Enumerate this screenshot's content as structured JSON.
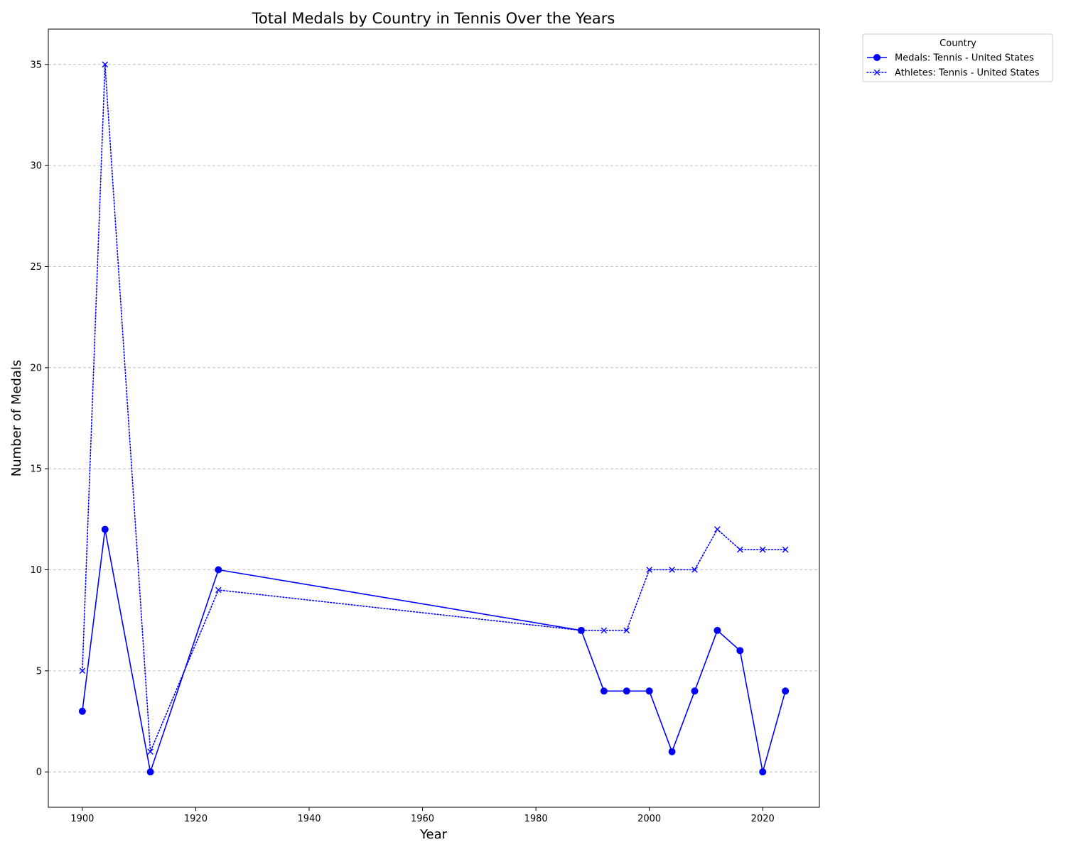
{
  "colors": {
    "series": "#0000ff",
    "grid": "#b0b0b0",
    "axis": "#000000",
    "background": "#ffffff"
  },
  "chart_data": {
    "type": "line",
    "title": "Total Medals by Country in Tennis Over the Years",
    "xlabel": "Year",
    "ylabel": "Number of Medals",
    "xlim": [
      1894,
      2030
    ],
    "ylim": [
      -1.75,
      36.75
    ],
    "xticks": [
      1900,
      1920,
      1940,
      1960,
      1980,
      2000,
      2020
    ],
    "yticks": [
      0,
      5,
      10,
      15,
      20,
      25,
      30,
      35
    ],
    "grid": "horizontal dashed",
    "legend": {
      "title": "Country",
      "placement": "outside top-right"
    },
    "series": [
      {
        "name": "Medals: Tennis - United States",
        "line_style": "solid",
        "marker": "circle",
        "x": [
          1900,
          1904,
          1912,
          1924,
          1988,
          1992,
          1996,
          2000,
          2004,
          2008,
          2012,
          2016,
          2020,
          2024
        ],
        "y": [
          3,
          12,
          0,
          10,
          7,
          4,
          4,
          4,
          1,
          4,
          7,
          6,
          0,
          4
        ]
      },
      {
        "name": "Athletes: Tennis - United States",
        "line_style": "dotted",
        "marker": "x",
        "x": [
          1900,
          1904,
          1912,
          1924,
          1988,
          1992,
          1996,
          2000,
          2004,
          2008,
          2012,
          2016,
          2020,
          2024
        ],
        "y": [
          5,
          35,
          1,
          9,
          7,
          7,
          7,
          10,
          10,
          10,
          12,
          11,
          11,
          11
        ]
      }
    ]
  }
}
